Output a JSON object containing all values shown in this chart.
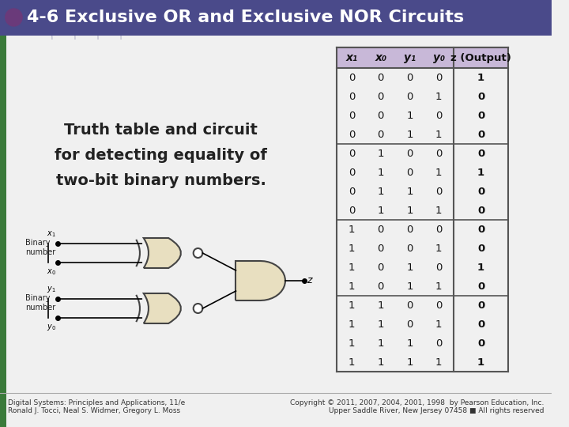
{
  "title": "4-6 Exclusive OR and Exclusive NOR Circuits",
  "title_bg": "#4a4a8a",
  "title_text_color": "#ffffff",
  "slide_bg": "#f0f0f0",
  "accent_color": "#3a7a3a",
  "circle_color": "#6a3a7a",
  "description_text": [
    "Truth table and circuit",
    "for detecting equality of",
    "two-bit binary numbers."
  ],
  "table_header": [
    "x₁",
    "x₀",
    "y₁",
    "y₀",
    "z (Output)"
  ],
  "table_data": [
    [
      0,
      0,
      0,
      0,
      1
    ],
    [
      0,
      0,
      0,
      1,
      0
    ],
    [
      0,
      0,
      1,
      0,
      0
    ],
    [
      0,
      0,
      1,
      1,
      0
    ],
    [
      0,
      1,
      0,
      0,
      0
    ],
    [
      0,
      1,
      0,
      1,
      1
    ],
    [
      0,
      1,
      1,
      0,
      0
    ],
    [
      0,
      1,
      1,
      1,
      0
    ],
    [
      1,
      0,
      0,
      0,
      0
    ],
    [
      1,
      0,
      0,
      1,
      0
    ],
    [
      1,
      0,
      1,
      0,
      1
    ],
    [
      1,
      0,
      1,
      1,
      0
    ],
    [
      1,
      1,
      0,
      0,
      0
    ],
    [
      1,
      1,
      0,
      1,
      0
    ],
    [
      1,
      1,
      1,
      0,
      0
    ],
    [
      1,
      1,
      1,
      1,
      1
    ]
  ],
  "table_header_bg": "#c8b8d8",
  "table_border_color": "#555555",
  "footer_left1": "Digital Systems: Principles and Applications, 11/e",
  "footer_left2": "Ronald J. Tocci, Neal S. Widmer, Gregory L. Moss",
  "footer_right": "Copyright © 2011, 2007, 2004, 2001, 1998  by Pearson Education, Inc.\nUpper Saddle River, New Jersey 07458 ■ All rights reserved"
}
